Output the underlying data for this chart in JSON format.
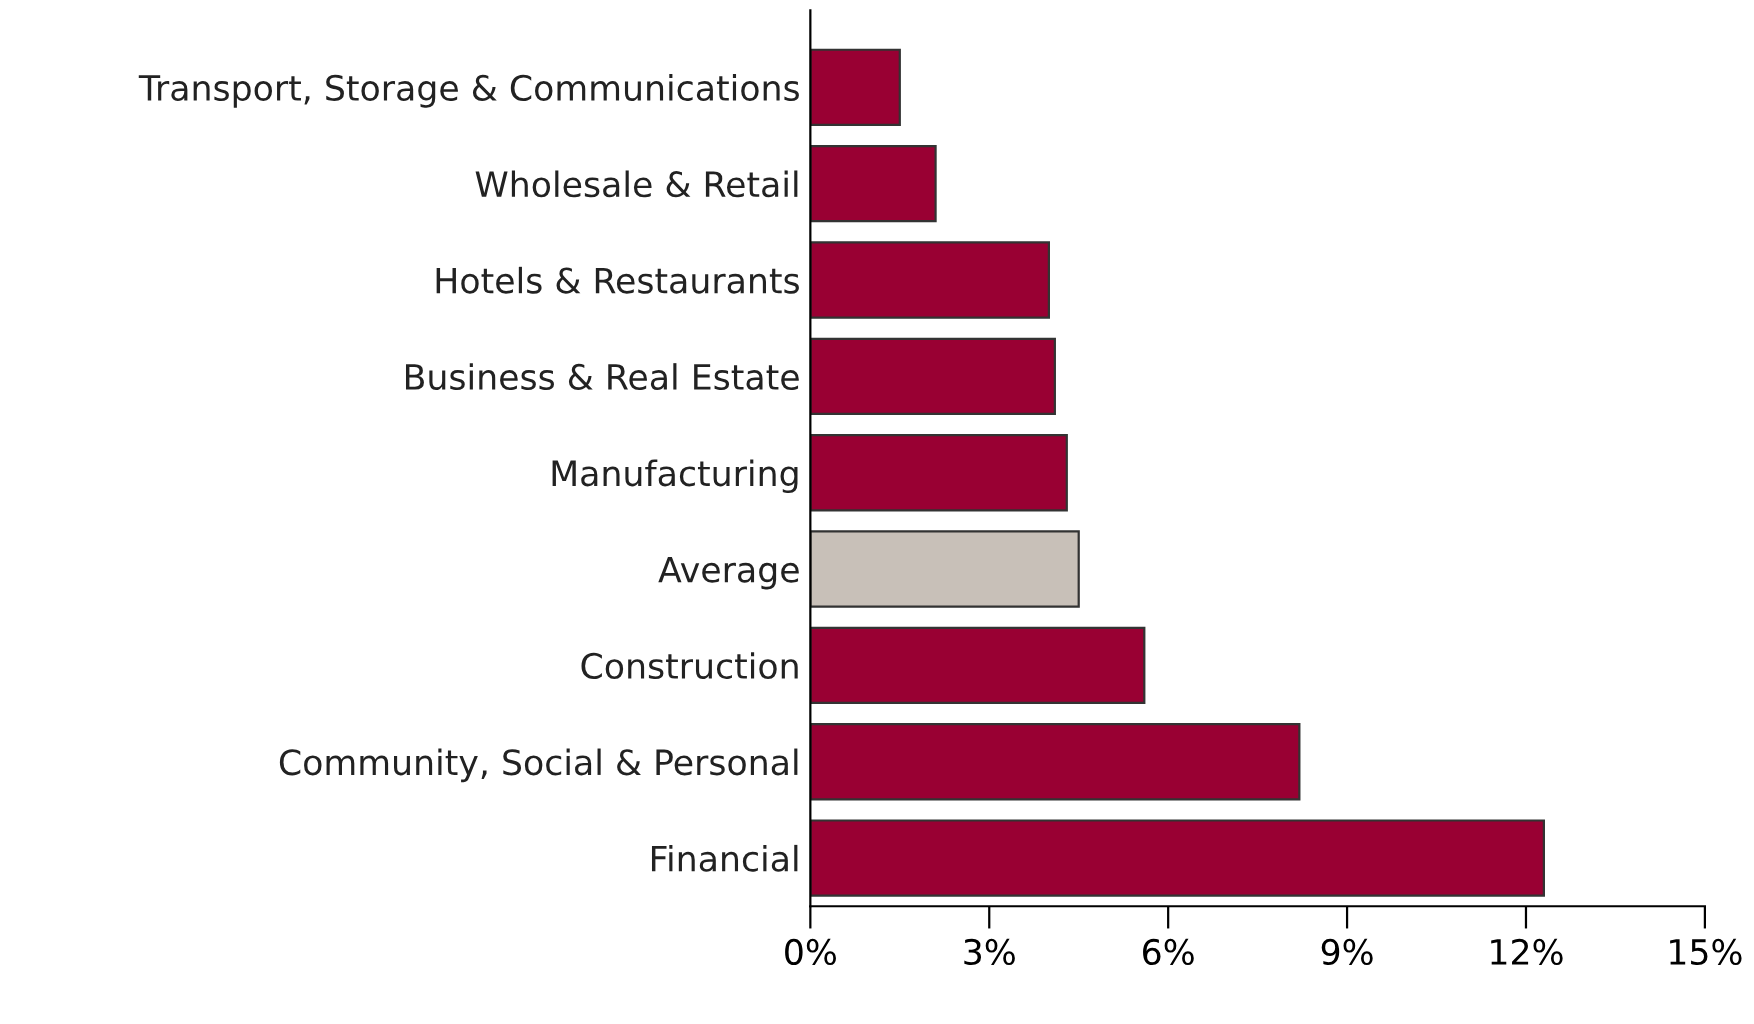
{
  "chart_data": {
    "type": "bar",
    "orientation": "horizontal",
    "categories": [
      "Transport, Storage & Communications",
      "Wholesale & Retail",
      "Hotels & Restaurants",
      "Business & Real Estate",
      "Manufacturing",
      "Average",
      "Construction",
      "Community, Social & Personal",
      "Financial"
    ],
    "values": [
      1.5,
      2.1,
      4.0,
      4.1,
      4.3,
      4.5,
      5.6,
      8.2,
      12.3
    ],
    "colors": [
      "#990033",
      "#990033",
      "#990033",
      "#990033",
      "#990033",
      "#c8c0b8",
      "#990033",
      "#990033",
      "#990033"
    ],
    "xlim": [
      0,
      15
    ],
    "xticks": [
      {
        "value": 0,
        "label": "0%"
      },
      {
        "value": 3,
        "label": "3%"
      },
      {
        "value": 6,
        "label": "6%"
      },
      {
        "value": 9,
        "label": "9%"
      },
      {
        "value": 12,
        "label": "12%"
      },
      {
        "value": 15,
        "label": "15%"
      }
    ],
    "grid": false
  }
}
